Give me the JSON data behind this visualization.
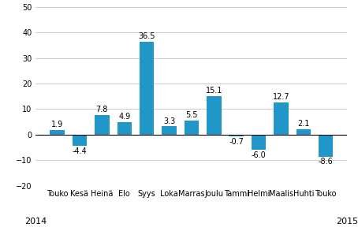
{
  "categories": [
    "Touko",
    "Kesä",
    "Heinä",
    "Elo",
    "Syys",
    "Loka",
    "Marras",
    "Joulu",
    "Tammi",
    "Helmi",
    "Maalis",
    "Huhti",
    "Touko"
  ],
  "values": [
    1.9,
    -4.4,
    7.8,
    4.9,
    36.5,
    3.3,
    5.5,
    15.1,
    -0.7,
    -6.0,
    12.7,
    2.1,
    -8.6
  ],
  "bar_color": "#2196C8",
  "ylim": [
    -20,
    50
  ],
  "yticks": [
    -20,
    -10,
    0,
    10,
    20,
    30,
    40,
    50
  ],
  "label_fontsize": 7.0,
  "tick_fontsize": 7.0,
  "year_fontsize": 8.0,
  "year_2014": "2014",
  "year_2015": "2015",
  "year_2014_idx": 0,
  "year_2015_idx": 12
}
